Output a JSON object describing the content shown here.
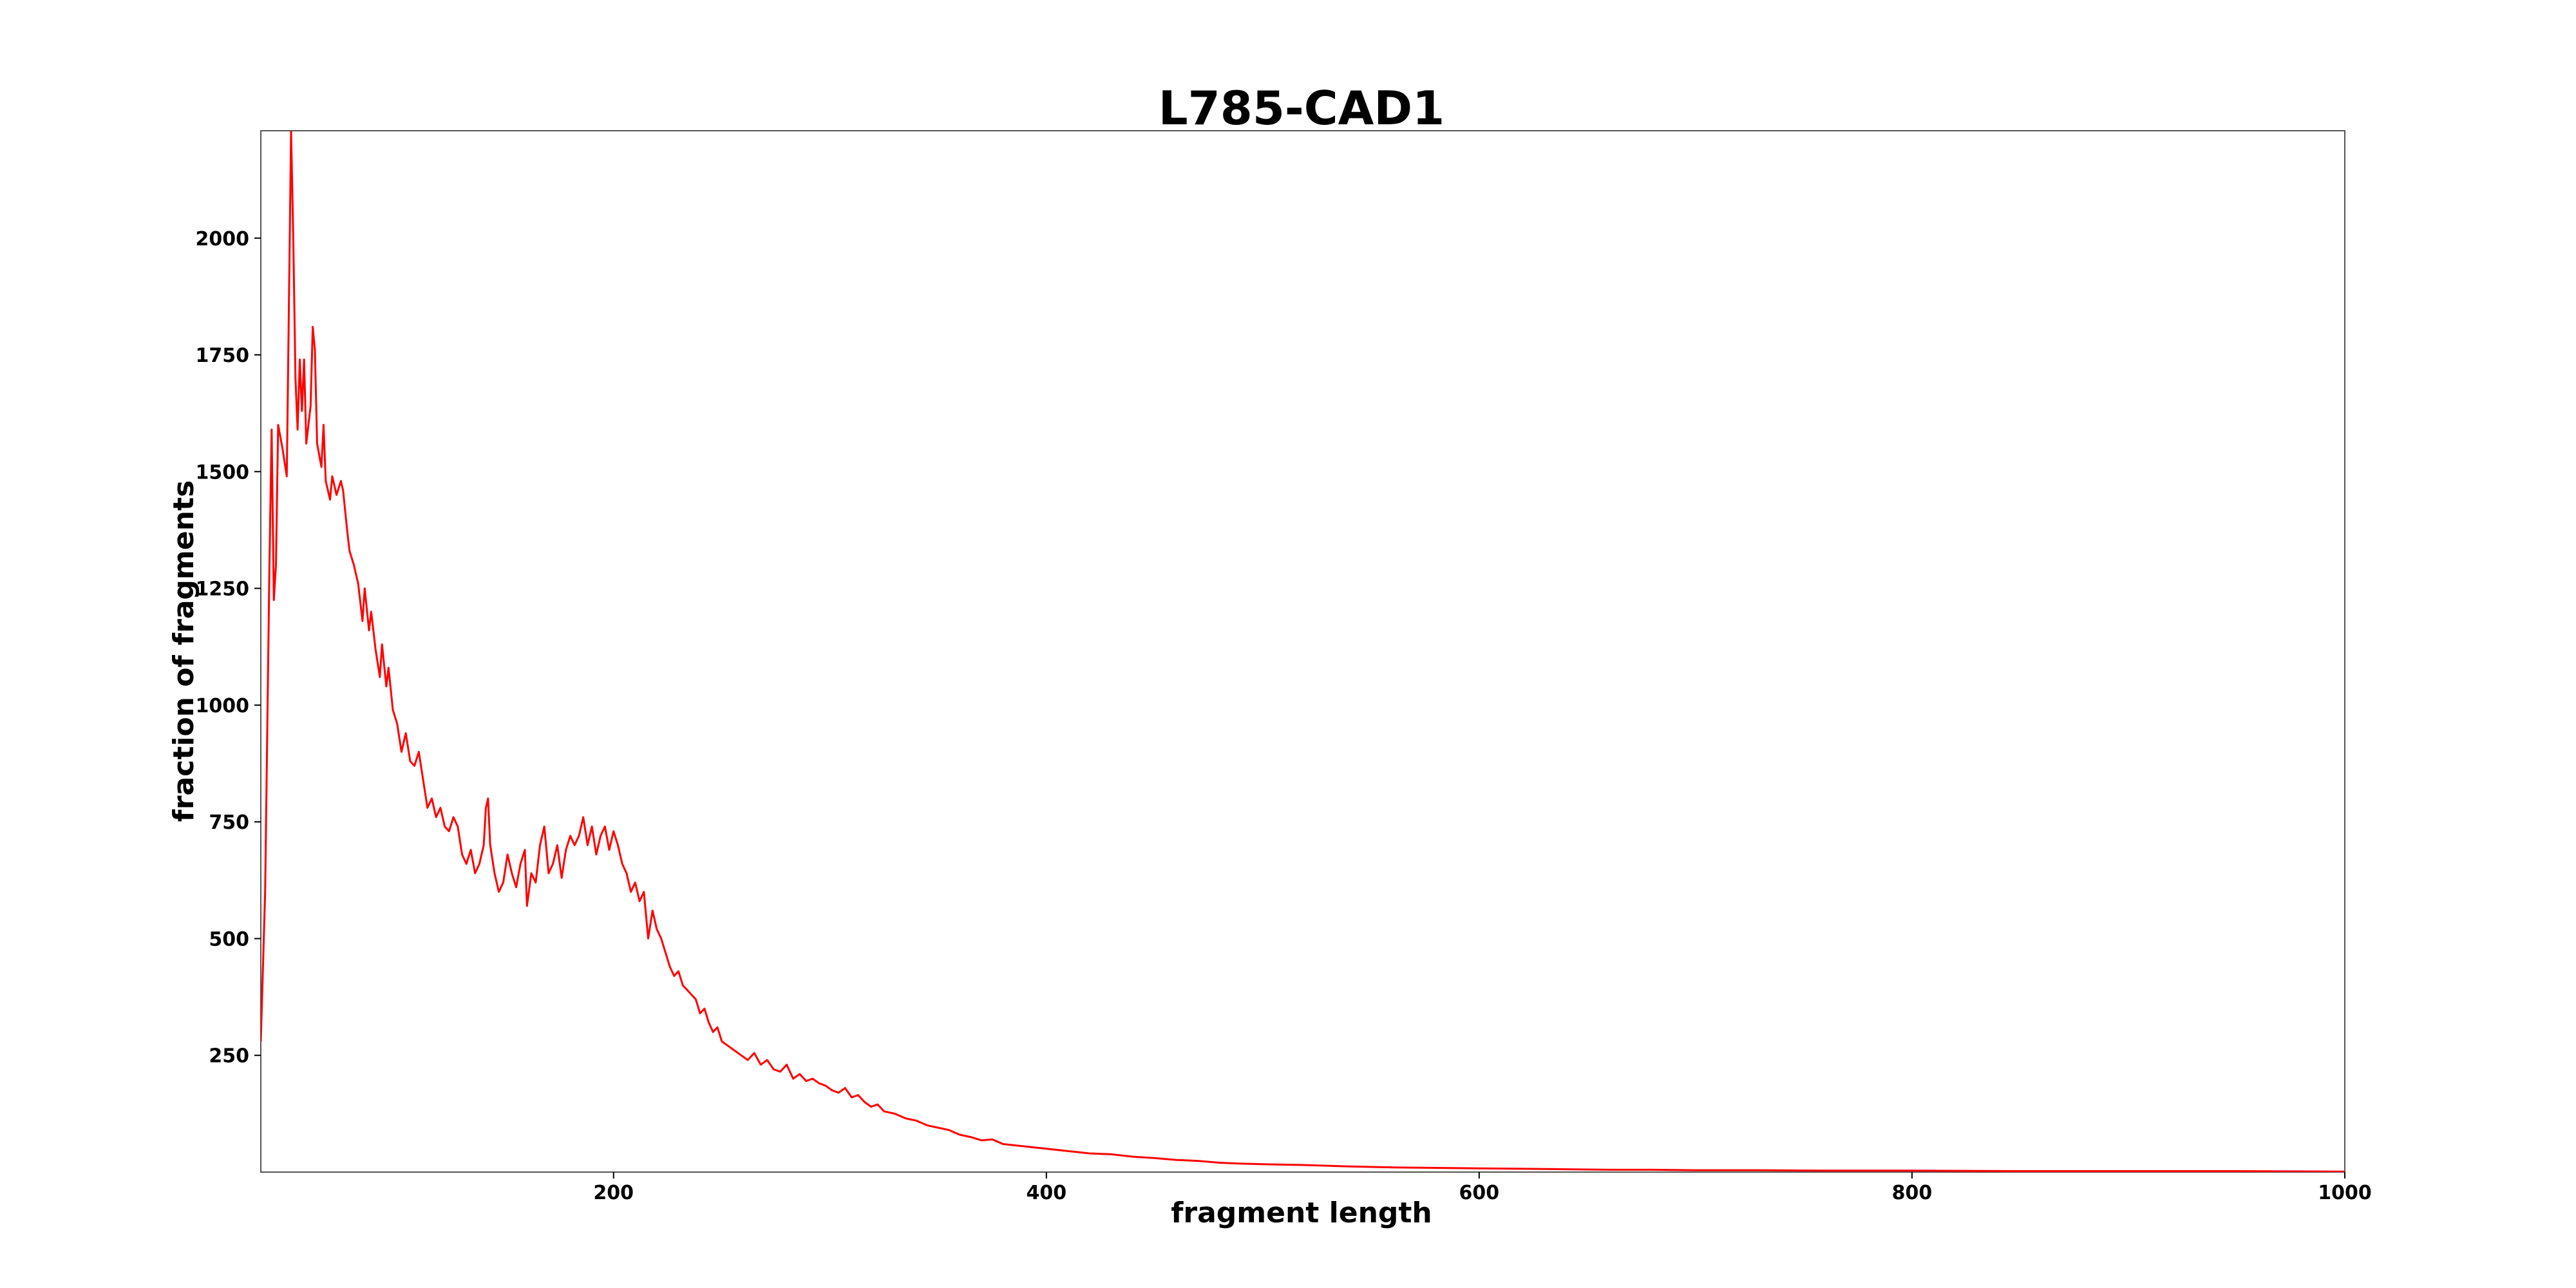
{
  "chart_data": {
    "type": "line",
    "title": "L785-CAD1",
    "xlabel": "fragment length",
    "ylabel": "fraction of fragments",
    "xlim": [
      37,
      1000
    ],
    "ylim": [
      0,
      2230
    ],
    "xticks": [
      200,
      400,
      600,
      800,
      1000
    ],
    "yticks": [
      250,
      500,
      750,
      1000,
      1250,
      1500,
      1750,
      2000
    ],
    "grid": false,
    "legend": "none",
    "series": [
      {
        "color": "#ff0000",
        "points": [
          [
            37,
            280
          ],
          [
            39,
            600
          ],
          [
            41,
            1300
          ],
          [
            42,
            1590
          ],
          [
            43,
            1225
          ],
          [
            44,
            1300
          ],
          [
            45,
            1600
          ],
          [
            47,
            1550
          ],
          [
            49,
            1490
          ],
          [
            51,
            2230
          ],
          [
            52,
            2000
          ],
          [
            53,
            1700
          ],
          [
            54,
            1590
          ],
          [
            55,
            1740
          ],
          [
            56,
            1630
          ],
          [
            57,
            1740
          ],
          [
            58,
            1560
          ],
          [
            59,
            1600
          ],
          [
            60,
            1640
          ],
          [
            61,
            1810
          ],
          [
            62,
            1760
          ],
          [
            63,
            1560
          ],
          [
            65,
            1510
          ],
          [
            66,
            1600
          ],
          [
            67,
            1480
          ],
          [
            69,
            1440
          ],
          [
            70,
            1490
          ],
          [
            72,
            1450
          ],
          [
            74,
            1480
          ],
          [
            75,
            1460
          ],
          [
            77,
            1370
          ],
          [
            78,
            1330
          ],
          [
            80,
            1300
          ],
          [
            82,
            1260
          ],
          [
            84,
            1180
          ],
          [
            85,
            1250
          ],
          [
            87,
            1160
          ],
          [
            88,
            1200
          ],
          [
            90,
            1120
          ],
          [
            92,
            1060
          ],
          [
            93,
            1130
          ],
          [
            95,
            1040
          ],
          [
            96,
            1080
          ],
          [
            98,
            990
          ],
          [
            100,
            960
          ],
          [
            102,
            900
          ],
          [
            104,
            940
          ],
          [
            106,
            880
          ],
          [
            108,
            870
          ],
          [
            110,
            900
          ],
          [
            112,
            840
          ],
          [
            114,
            780
          ],
          [
            116,
            800
          ],
          [
            118,
            760
          ],
          [
            120,
            780
          ],
          [
            122,
            740
          ],
          [
            124,
            730
          ],
          [
            126,
            760
          ],
          [
            128,
            740
          ],
          [
            130,
            680
          ],
          [
            132,
            660
          ],
          [
            134,
            690
          ],
          [
            136,
            640
          ],
          [
            138,
            660
          ],
          [
            140,
            700
          ],
          [
            141,
            780
          ],
          [
            142,
            800
          ],
          [
            143,
            700
          ],
          [
            145,
            640
          ],
          [
            147,
            600
          ],
          [
            149,
            620
          ],
          [
            151,
            680
          ],
          [
            153,
            640
          ],
          [
            155,
            610
          ],
          [
            157,
            660
          ],
          [
            159,
            690
          ],
          [
            160,
            570
          ],
          [
            162,
            640
          ],
          [
            164,
            620
          ],
          [
            166,
            700
          ],
          [
            168,
            740
          ],
          [
            170,
            640
          ],
          [
            172,
            660
          ],
          [
            174,
            700
          ],
          [
            176,
            630
          ],
          [
            178,
            690
          ],
          [
            180,
            720
          ],
          [
            182,
            700
          ],
          [
            184,
            720
          ],
          [
            186,
            760
          ],
          [
            188,
            700
          ],
          [
            190,
            740
          ],
          [
            192,
            680
          ],
          [
            194,
            720
          ],
          [
            196,
            740
          ],
          [
            198,
            690
          ],
          [
            200,
            730
          ],
          [
            202,
            700
          ],
          [
            204,
            660
          ],
          [
            206,
            640
          ],
          [
            208,
            600
          ],
          [
            210,
            620
          ],
          [
            212,
            580
          ],
          [
            214,
            600
          ],
          [
            216,
            500
          ],
          [
            218,
            560
          ],
          [
            220,
            520
          ],
          [
            222,
            500
          ],
          [
            224,
            470
          ],
          [
            226,
            440
          ],
          [
            228,
            420
          ],
          [
            230,
            430
          ],
          [
            232,
            400
          ],
          [
            234,
            390
          ],
          [
            236,
            380
          ],
          [
            238,
            370
          ],
          [
            240,
            340
          ],
          [
            242,
            350
          ],
          [
            244,
            320
          ],
          [
            246,
            300
          ],
          [
            248,
            310
          ],
          [
            250,
            280
          ],
          [
            253,
            270
          ],
          [
            256,
            260
          ],
          [
            259,
            250
          ],
          [
            262,
            240
          ],
          [
            265,
            255
          ],
          [
            268,
            230
          ],
          [
            271,
            240
          ],
          [
            274,
            220
          ],
          [
            277,
            215
          ],
          [
            280,
            230
          ],
          [
            283,
            200
          ],
          [
            286,
            210
          ],
          [
            289,
            195
          ],
          [
            292,
            200
          ],
          [
            295,
            190
          ],
          [
            298,
            185
          ],
          [
            301,
            175
          ],
          [
            304,
            170
          ],
          [
            307,
            180
          ],
          [
            310,
            160
          ],
          [
            313,
            165
          ],
          [
            316,
            150
          ],
          [
            319,
            140
          ],
          [
            322,
            145
          ],
          [
            325,
            130
          ],
          [
            330,
            125
          ],
          [
            335,
            115
          ],
          [
            340,
            110
          ],
          [
            345,
            100
          ],
          [
            350,
            95
          ],
          [
            355,
            90
          ],
          [
            360,
            80
          ],
          [
            365,
            75
          ],
          [
            370,
            68
          ],
          [
            375,
            70
          ],
          [
            380,
            60
          ],
          [
            390,
            55
          ],
          [
            400,
            50
          ],
          [
            410,
            45
          ],
          [
            420,
            40
          ],
          [
            430,
            38
          ],
          [
            440,
            33
          ],
          [
            450,
            30
          ],
          [
            460,
            26
          ],
          [
            470,
            24
          ],
          [
            480,
            20
          ],
          [
            490,
            18
          ],
          [
            500,
            17
          ],
          [
            520,
            15
          ],
          [
            540,
            12
          ],
          [
            560,
            10
          ],
          [
            580,
            9
          ],
          [
            600,
            8
          ],
          [
            620,
            7
          ],
          [
            640,
            6
          ],
          [
            660,
            5
          ],
          [
            680,
            5
          ],
          [
            700,
            4
          ],
          [
            730,
            4
          ],
          [
            760,
            3
          ],
          [
            800,
            3
          ],
          [
            850,
            2
          ],
          [
            900,
            2
          ],
          [
            950,
            2
          ],
          [
            1000,
            1
          ]
        ]
      }
    ]
  }
}
